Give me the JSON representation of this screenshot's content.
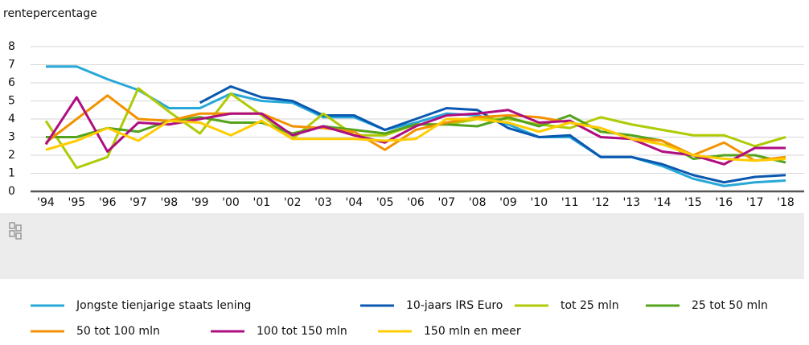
{
  "chart_data": {
    "type": "line",
    "y_label": "rentepercentage",
    "categories": [
      "'94",
      "'95",
      "'96",
      "'97",
      "'98",
      "'99",
      "'00",
      "'01",
      "'02",
      "'03",
      "'04",
      "'05",
      "'06",
      "'07",
      "'08",
      "'09",
      "'10",
      "'11",
      "'12",
      "'13",
      "'14",
      "'15",
      "'16",
      "'17",
      "'18"
    ],
    "ylim": [
      0,
      8
    ],
    "yticks": [
      0,
      1,
      2,
      3,
      4,
      5,
      6,
      7,
      8
    ],
    "grid": true,
    "series": [
      {
        "name": "Jongste tienjarige staats lening",
        "color": "#28a8d8",
        "values": [
          6.9,
          6.9,
          6.2,
          5.6,
          4.6,
          4.6,
          5.4,
          5.0,
          4.9,
          4.1,
          4.1,
          3.4,
          3.8,
          4.3,
          4.2,
          3.7,
          3.0,
          3.0,
          1.9,
          1.9,
          1.4,
          0.7,
          0.3,
          0.5,
          0.6
        ]
      },
      {
        "name": "10-jaars IRS Euro",
        "color": "#0a58b0",
        "values": [
          null,
          null,
          null,
          null,
          null,
          4.9,
          5.8,
          5.2,
          5.0,
          4.2,
          4.2,
          3.4,
          4.0,
          4.6,
          4.5,
          3.5,
          3.0,
          3.1,
          1.9,
          1.9,
          1.5,
          0.9,
          0.5,
          0.8,
          0.9
        ]
      },
      {
        "name": "tot 25 mln",
        "color": "#afcb05",
        "values": [
          3.9,
          1.3,
          1.9,
          5.7,
          4.4,
          3.2,
          5.4,
          4.2,
          2.9,
          4.3,
          3.1,
          3.1,
          3.7,
          3.7,
          4.0,
          4.0,
          3.7,
          3.5,
          4.1,
          3.7,
          3.4,
          3.1,
          3.1,
          2.5,
          3.0
        ]
      },
      {
        "name": "25 tot 50 mln",
        "color": "#53a31d",
        "values": [
          3.0,
          3.0,
          3.5,
          3.3,
          3.9,
          4.1,
          3.8,
          3.8,
          3.2,
          3.6,
          3.4,
          3.2,
          3.7,
          3.7,
          3.6,
          4.1,
          3.6,
          4.2,
          3.3,
          3.1,
          2.8,
          1.8,
          2.0,
          2.0,
          1.6
        ]
      },
      {
        "name": "50 tot 100 mln",
        "color": "#f39200",
        "values": [
          2.7,
          4.0,
          5.3,
          4.0,
          3.9,
          4.3,
          4.3,
          4.3,
          3.6,
          3.5,
          3.3,
          2.3,
          3.4,
          3.8,
          4.1,
          4.2,
          4.1,
          3.8,
          3.5,
          2.9,
          2.8,
          2.0,
          2.7,
          1.7,
          1.9
        ]
      },
      {
        "name": "100 tot 150 mln",
        "color": "#af0e80",
        "values": [
          2.6,
          5.2,
          2.2,
          3.8,
          3.7,
          4.0,
          4.3,
          4.3,
          3.1,
          3.6,
          3.1,
          2.7,
          3.6,
          4.2,
          4.3,
          4.5,
          3.8,
          3.9,
          3.0,
          2.9,
          2.2,
          2.0,
          1.5,
          2.4,
          2.4
        ]
      },
      {
        "name": "150 mln en meer",
        "color": "#ffcc00",
        "values": [
          2.3,
          2.8,
          3.5,
          2.8,
          3.9,
          3.8,
          3.1,
          3.9,
          2.9,
          2.9,
          2.9,
          2.8,
          2.9,
          4.0,
          4.0,
          3.8,
          3.3,
          3.8,
          3.5,
          2.9,
          2.6,
          2.0,
          1.8,
          1.7,
          1.8
        ]
      }
    ]
  }
}
